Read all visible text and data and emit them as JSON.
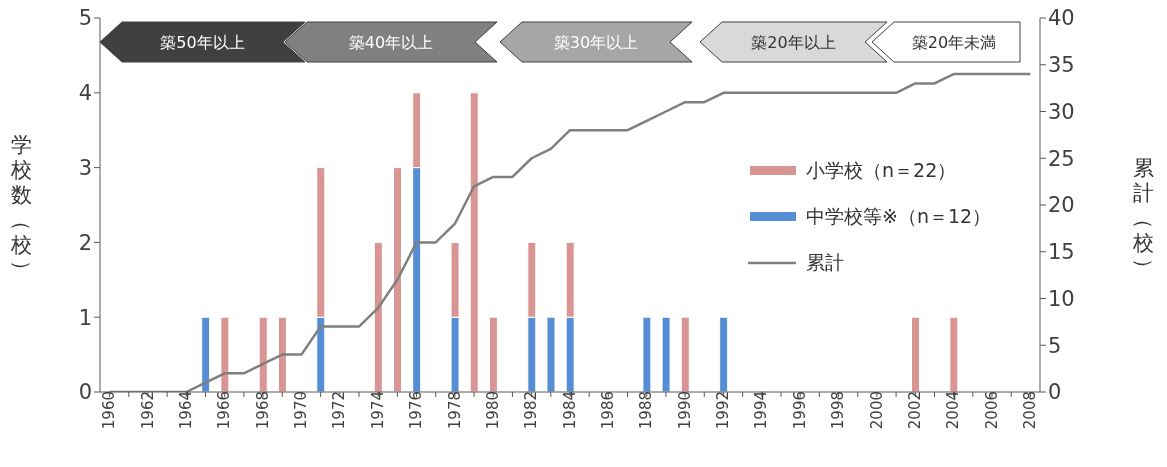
{
  "chart_data": {
    "type": "bar",
    "stacked": true,
    "ylabel": "学校数（校）",
    "y2label": "累計（校）",
    "annotations": [
      "築50年以上",
      "築40年以上",
      "築30年以上",
      "築20年以上",
      "築20年未満"
    ],
    "categories": [
      "1960",
      null,
      "1962",
      null,
      "1964",
      null,
      "1966",
      null,
      "1968",
      null,
      "1970",
      null,
      "1972",
      null,
      "1974",
      null,
      "1976",
      null,
      "1978",
      null,
      "1980",
      null,
      "1982",
      null,
      "1984",
      null,
      "1986",
      null,
      "1988",
      null,
      "1990",
      null,
      "1992",
      null,
      "1994",
      null,
      "1996",
      null,
      "1998",
      null,
      "2000",
      null,
      "2002",
      null,
      "2004",
      null,
      "2006",
      null,
      "2008"
    ],
    "series": [
      {
        "name": "中学校等※（n＝12）",
        "color": "#558ed5",
        "values": [
          0,
          0,
          0,
          0,
          0,
          1,
          0,
          0,
          0,
          0,
          0,
          1,
          0,
          0,
          0,
          0,
          3,
          0,
          1,
          0,
          0,
          0,
          1,
          1,
          1,
          0,
          0,
          0,
          1,
          1,
          0,
          0,
          1,
          0,
          0,
          0,
          0,
          0,
          0,
          0,
          0,
          0,
          0,
          0,
          0,
          0,
          0,
          0,
          0
        ]
      },
      {
        "name": "小学校（n＝22）",
        "color": "#d99594",
        "values": [
          0,
          0,
          0,
          0,
          0,
          0,
          1,
          0,
          1,
          1,
          0,
          2,
          0,
          0,
          2,
          3,
          1,
          0,
          1,
          4,
          1,
          0,
          1,
          0,
          1,
          0,
          0,
          0,
          0,
          0,
          1,
          0,
          0,
          0,
          0,
          0,
          0,
          0,
          0,
          0,
          0,
          0,
          1,
          0,
          1,
          0,
          0,
          0,
          0
        ]
      },
      {
        "name": "累計",
        "type": "line",
        "axis": "y2",
        "color": "#7f7f7f",
        "values": [
          0,
          0,
          0,
          0,
          0,
          1,
          2,
          2,
          3,
          4,
          4,
          7,
          7,
          7,
          9,
          12,
          16,
          16,
          18,
          22,
          23,
          23,
          25,
          26,
          28,
          28,
          28,
          28,
          29,
          30,
          31,
          31,
          32,
          32,
          32,
          32,
          32,
          32,
          32,
          32,
          32,
          32,
          33,
          33,
          34,
          34,
          34,
          34,
          34
        ]
      }
    ],
    "ylim": [
      0,
      5
    ],
    "yticks": [
      0,
      1,
      2,
      3,
      4,
      5
    ],
    "y2lim": [
      0,
      40
    ],
    "y2ticks": [
      0,
      5,
      10,
      15,
      20,
      25,
      30,
      35,
      40
    ],
    "grid": false,
    "legend": "right",
    "marker": "none",
    "line_style": "solid"
  }
}
